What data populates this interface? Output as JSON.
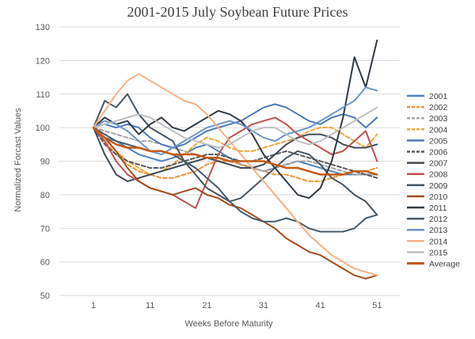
{
  "chart_data": {
    "type": "line",
    "title": "2001-2015 July Soybean Future Prices",
    "xlabel": "Weeks Before Maturity",
    "ylabel": "Normalized Forcast Values",
    "xlim": [
      -5,
      55
    ],
    "ylim": [
      50,
      130
    ],
    "xticks": [
      1,
      11,
      21,
      31,
      41,
      51
    ],
    "yticks": [
      50,
      60,
      70,
      80,
      90,
      100,
      110,
      120,
      130
    ],
    "grid": "horizontal",
    "legend": "right",
    "series": [
      {
        "name": "2001",
        "color": "#4f81bd",
        "dash": "solid",
        "x": [
          1,
          3,
          5,
          7,
          9,
          11,
          13,
          15,
          17,
          19,
          21,
          23,
          25,
          27,
          29,
          31,
          33,
          35,
          37,
          39,
          41,
          43,
          45,
          47,
          49,
          51
        ],
        "values": [
          100,
          97,
          96,
          94,
          92,
          91,
          90,
          91,
          92,
          94,
          95,
          93,
          91,
          89,
          88,
          87,
          88,
          89,
          90,
          89,
          88,
          87,
          86,
          86,
          86,
          86
        ]
      },
      {
        "name": "2002",
        "color": "#e8943a",
        "dash": "dash",
        "x": [
          1,
          3,
          5,
          7,
          9,
          11,
          13,
          15,
          17,
          19,
          21,
          23,
          25,
          27,
          29,
          31,
          33,
          35,
          37,
          39,
          41,
          43,
          45,
          47,
          49,
          51
        ],
        "values": [
          100,
          96,
          92,
          89,
          87,
          86,
          85,
          85,
          86,
          87,
          89,
          90,
          90,
          89,
          88,
          87,
          86,
          86,
          85,
          84,
          84,
          85,
          86,
          87,
          87,
          88
        ]
      },
      {
        "name": "2003",
        "color": "#a5a5a5",
        "dash": "dash",
        "x": [
          1,
          3,
          5,
          7,
          9,
          11,
          13,
          15,
          17,
          19,
          21,
          23,
          25,
          27,
          29,
          31,
          33,
          35,
          37,
          39,
          41,
          43,
          45,
          47,
          49,
          51
        ],
        "values": [
          100,
          99,
          98,
          97,
          96,
          96,
          95,
          94,
          93,
          92,
          91,
          90,
          89,
          88,
          88,
          87,
          88,
          89,
          90,
          90,
          89,
          88,
          87,
          86,
          86,
          86
        ]
      },
      {
        "name": "2004",
        "color": "#f0a63a",
        "dash": "dash",
        "x": [
          1,
          3,
          5,
          7,
          9,
          11,
          13,
          15,
          17,
          19,
          21,
          23,
          25,
          27,
          29,
          31,
          33,
          35,
          37,
          39,
          41,
          43,
          45,
          47,
          49,
          51
        ],
        "values": [
          100,
          97,
          93,
          90,
          88,
          86,
          87,
          89,
          92,
          95,
          97,
          96,
          94,
          93,
          93,
          94,
          95,
          96,
          97,
          99,
          100,
          100,
          98,
          96,
          94,
          98
        ]
      },
      {
        "name": "2005",
        "color": "#4a78b8",
        "dash": "solid",
        "x": [
          1,
          3,
          5,
          7,
          9,
          11,
          13,
          15,
          17,
          19,
          21,
          23,
          25,
          27,
          29,
          31,
          33,
          35,
          37,
          39,
          41,
          43,
          45,
          47,
          49,
          51
        ],
        "values": [
          100,
          101,
          100,
          101,
          100,
          97,
          95,
          94,
          95,
          97,
          99,
          100,
          101,
          102,
          104,
          106,
          107,
          106,
          104,
          102,
          101,
          103,
          104,
          103,
          100,
          103
        ]
      },
      {
        "name": "2006",
        "color": "#5a5a5a",
        "dash": "dash",
        "x": [
          1,
          3,
          5,
          7,
          9,
          11,
          13,
          15,
          17,
          19,
          21,
          23,
          25,
          27,
          29,
          31,
          33,
          35,
          37,
          39,
          41,
          43,
          45,
          47,
          49,
          51
        ],
        "values": [
          100,
          95,
          92,
          90,
          89,
          88,
          88,
          89,
          90,
          91,
          92,
          92,
          91,
          90,
          90,
          91,
          92,
          93,
          92,
          91,
          90,
          89,
          88,
          87,
          86,
          85
        ]
      },
      {
        "name": "2007",
        "color": "#3e4a55",
        "dash": "solid",
        "x": [
          1,
          3,
          5,
          7,
          9,
          11,
          13,
          15,
          17,
          19,
          21,
          23,
          25,
          27,
          29,
          31,
          33,
          35,
          37,
          39,
          41,
          43,
          45,
          47,
          49,
          51
        ],
        "values": [
          100,
          92,
          86,
          84,
          85,
          86,
          87,
          88,
          89,
          90,
          91,
          90,
          89,
          88,
          88,
          89,
          92,
          95,
          97,
          98,
          98,
          97,
          95,
          94,
          94,
          95
        ]
      },
      {
        "name": "2008",
        "color": "#c0504d",
        "dash": "solid",
        "x": [
          1,
          3,
          5,
          7,
          9,
          11,
          13,
          15,
          17,
          19,
          21,
          23,
          25,
          27,
          29,
          31,
          33,
          35,
          37,
          39,
          41,
          43,
          45,
          47,
          49,
          51
        ],
        "values": [
          100,
          96,
          90,
          86,
          84,
          82,
          81,
          80,
          78,
          76,
          84,
          92,
          97,
          99,
          101,
          102,
          103,
          101,
          98,
          96,
          94,
          92,
          93,
          96,
          99,
          90
        ]
      },
      {
        "name": "2009",
        "color": "#465560",
        "dash": "solid",
        "x": [
          1,
          3,
          5,
          7,
          9,
          11,
          13,
          15,
          17,
          19,
          21,
          23,
          25,
          27,
          29,
          31,
          33,
          35,
          37,
          39,
          41,
          43,
          45,
          47,
          49,
          51
        ],
        "values": [
          100,
          108,
          106,
          110,
          104,
          100,
          98,
          96,
          90,
          86,
          82,
          80,
          78,
          79,
          82,
          85,
          88,
          91,
          93,
          92,
          89,
          85,
          83,
          80,
          78,
          74
        ]
      },
      {
        "name": "2010",
        "color": "#a34a1c",
        "dash": "solid",
        "x": [
          1,
          3,
          5,
          7,
          9,
          11,
          13,
          15,
          17,
          19,
          21,
          23,
          25,
          27,
          29,
          31,
          33,
          35,
          37,
          39,
          41,
          43,
          45,
          47,
          49,
          51
        ],
        "values": [
          100,
          97,
          93,
          88,
          84,
          82,
          81,
          80,
          81,
          82,
          80,
          79,
          77,
          76,
          74,
          72,
          70,
          67,
          65,
          63,
          62,
          60,
          58,
          56,
          55,
          56
        ]
      },
      {
        "name": "2011",
        "color": "#2f3b45",
        "dash": "solid",
        "x": [
          1,
          3,
          5,
          7,
          9,
          11,
          13,
          15,
          17,
          19,
          21,
          23,
          25,
          27,
          29,
          31,
          33,
          35,
          37,
          39,
          41,
          43,
          45,
          47,
          49,
          51
        ],
        "values": [
          100,
          103,
          101,
          102,
          98,
          101,
          103,
          100,
          99,
          101,
          103,
          105,
          104,
          102,
          98,
          92,
          88,
          84,
          80,
          79,
          82,
          90,
          103,
          121,
          112,
          126
        ]
      },
      {
        "name": "2012",
        "color": "#455a68",
        "dash": "solid",
        "x": [
          1,
          3,
          5,
          7,
          9,
          11,
          13,
          15,
          17,
          19,
          21,
          23,
          25,
          27,
          29,
          31,
          33,
          35,
          37,
          39,
          41,
          43,
          45,
          47,
          49,
          51
        ],
        "values": [
          100,
          98,
          96,
          95,
          94,
          93,
          93,
          92,
          90,
          88,
          85,
          82,
          78,
          75,
          73,
          72,
          72,
          73,
          72,
          70,
          69,
          69,
          69,
          70,
          73,
          74
        ]
      },
      {
        "name": "2013",
        "color": "#6a95cf",
        "dash": "solid",
        "x": [
          1,
          3,
          5,
          7,
          9,
          11,
          13,
          15,
          17,
          19,
          21,
          23,
          25,
          27,
          29,
          31,
          33,
          35,
          37,
          39,
          41,
          43,
          45,
          47,
          49,
          51
        ],
        "values": [
          100,
          102,
          101,
          99,
          96,
          93,
          92,
          94,
          96,
          98,
          100,
          101,
          102,
          101,
          99,
          97,
          96,
          98,
          99,
          100,
          102,
          104,
          106,
          108,
          112,
          111
        ]
      },
      {
        "name": "2014",
        "color": "#f4b183",
        "dash": "solid",
        "x": [
          1,
          3,
          5,
          7,
          9,
          11,
          13,
          15,
          17,
          19,
          21,
          23,
          25,
          27,
          29,
          31,
          33,
          35,
          37,
          39,
          41,
          43,
          45,
          47,
          49,
          51
        ],
        "values": [
          100,
          105,
          110,
          114,
          116,
          114,
          112,
          110,
          108,
          107,
          104,
          100,
          96,
          92,
          88,
          84,
          80,
          76,
          72,
          68,
          65,
          62,
          60,
          58,
          57,
          56
        ]
      },
      {
        "name": "2015",
        "color": "#bfbfbf",
        "dash": "solid",
        "x": [
          1,
          3,
          5,
          7,
          9,
          11,
          13,
          15,
          17,
          19,
          21,
          23,
          25,
          27,
          29,
          31,
          33,
          35,
          37,
          39,
          41,
          43,
          45,
          47,
          49,
          51
        ],
        "values": [
          100,
          101,
          102,
          103,
          104,
          103,
          101,
          99,
          97,
          96,
          95,
          94,
          95,
          97,
          99,
          100,
          100,
          98,
          96,
          95,
          96,
          98,
          100,
          102,
          104,
          106
        ]
      },
      {
        "name": "Average",
        "color": "#c55a11",
        "dash": "solid",
        "x": [
          1,
          3,
          5,
          7,
          9,
          11,
          13,
          15,
          17,
          19,
          21,
          23,
          25,
          27,
          29,
          31,
          33,
          35,
          37,
          39,
          41,
          43,
          45,
          47,
          49,
          51
        ],
        "values": [
          100,
          97,
          95,
          94,
          94,
          93,
          93,
          92,
          92,
          92,
          91,
          91,
          90,
          90,
          90,
          90,
          89,
          88,
          88,
          87,
          86,
          86,
          86,
          87,
          87,
          86
        ]
      }
    ]
  }
}
